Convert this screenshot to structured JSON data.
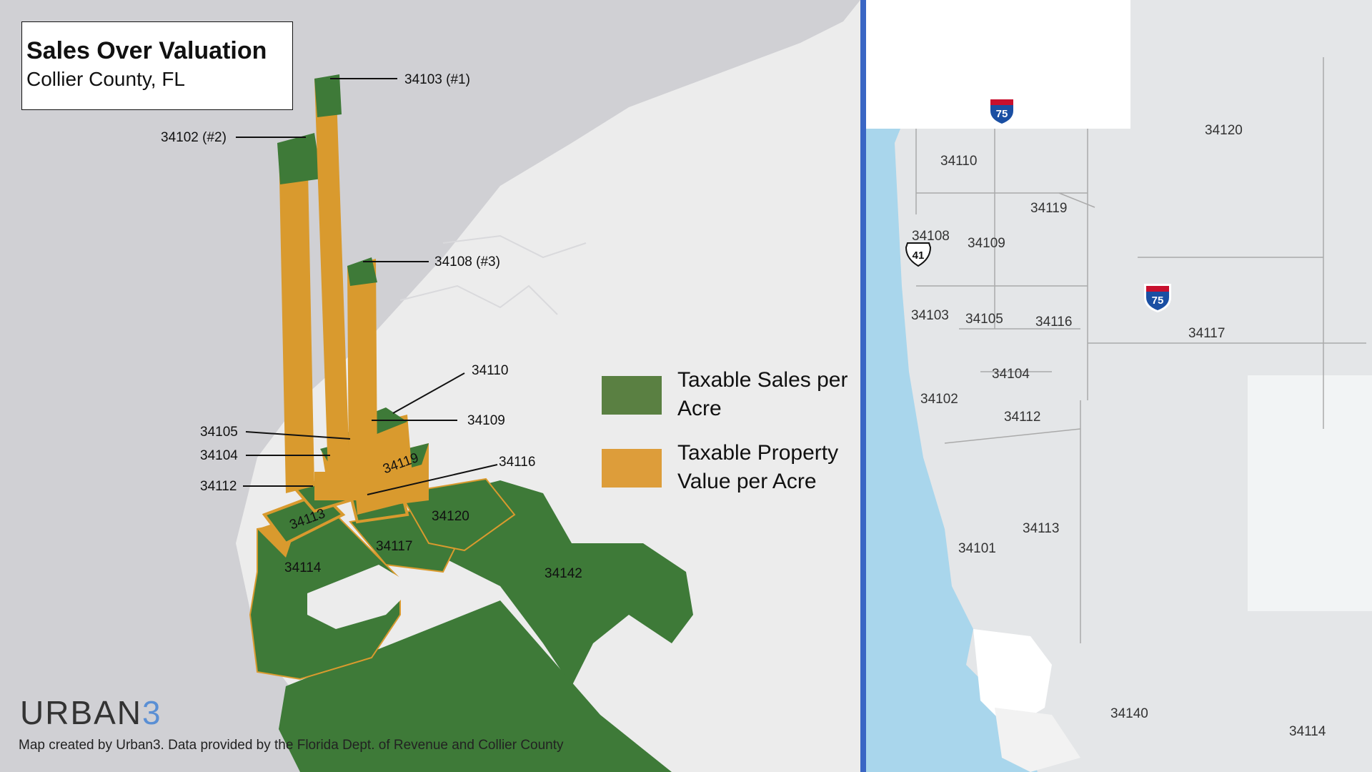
{
  "title": {
    "main": "Sales Over Valuation",
    "subtitle": "Collier County, FL"
  },
  "legend": [
    {
      "label": "Taxable Sales per Acre",
      "color": "#5a8042"
    },
    {
      "label": "Taxable Property Value per Acre",
      "color": "#dd9d3a"
    }
  ],
  "left_map": {
    "callouts": [
      {
        "zip": "34103 (#1)"
      },
      {
        "zip": "34102 (#2)"
      },
      {
        "zip": "34108 (#3)"
      },
      {
        "zip": "34110"
      },
      {
        "zip": "34109"
      },
      {
        "zip": "34105"
      },
      {
        "zip": "34104"
      },
      {
        "zip": "34116"
      },
      {
        "zip": "34112"
      }
    ],
    "region_labels": [
      "34113",
      "34119",
      "34120",
      "34117",
      "34114",
      "34142"
    ],
    "colors": {
      "sales": "#3e7a38",
      "value": "#d99a2e",
      "land": "#ececec",
      "water": "#cfcfd3"
    }
  },
  "right_map": {
    "zip_labels": [
      "34120",
      "34110",
      "34119",
      "34108",
      "34109",
      "34103",
      "34105",
      "34116",
      "34117",
      "34104",
      "34102",
      "34112",
      "34113",
      "34101",
      "34140",
      "34114"
    ],
    "highway_shields": [
      {
        "type": "interstate",
        "number": "75"
      },
      {
        "type": "us",
        "number": "41"
      },
      {
        "type": "interstate",
        "number": "75"
      }
    ],
    "colors": {
      "water": "#a9d6ec",
      "land": "#e4e6e8",
      "boundary": "#aaaaaa"
    }
  },
  "logo": {
    "text": "URBAN",
    "accent": "3"
  },
  "credit": "Map created by Urban3. Data provided by the Florida Dept. of Revenue and Collier County"
}
